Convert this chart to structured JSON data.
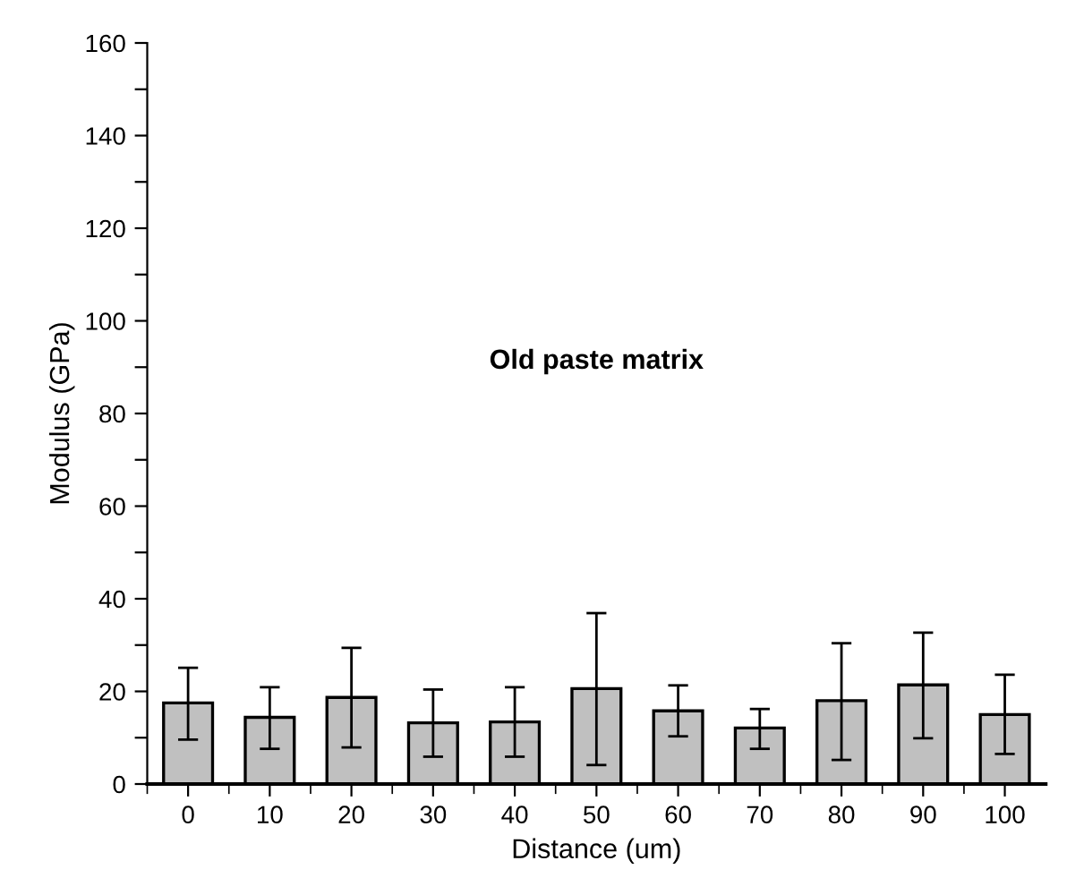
{
  "chart_data": {
    "type": "bar",
    "xlabel": "Distance (um)",
    "ylabel": "Modulus (GPa)",
    "annotations": [
      "Old paste matrix"
    ],
    "categories": [
      "0",
      "10",
      "20",
      "30",
      "40",
      "50",
      "60",
      "70",
      "80",
      "90",
      "100"
    ],
    "values": [
      17.5,
      14.4,
      18.7,
      13.2,
      13.4,
      20.6,
      15.8,
      12.1,
      18.0,
      21.4,
      15.0
    ],
    "errors": [
      [
        9.6,
        25.1
      ],
      [
        7.6,
        20.9
      ],
      [
        7.9,
        29.4
      ],
      [
        5.9,
        20.4
      ],
      [
        5.9,
        20.9
      ],
      [
        4.1,
        36.9
      ],
      [
        10.3,
        21.3
      ],
      [
        7.6,
        16.2
      ],
      [
        5.2,
        30.4
      ],
      [
        9.9,
        32.7
      ],
      [
        6.5,
        23.6
      ]
    ],
    "color": "#c0c0c0",
    "ylim": [
      0,
      160
    ],
    "yticks": [
      0,
      {
        "value": 10,
        "label": null
      },
      20,
      {
        "value": 30,
        "label": null
      },
      40,
      {
        "value": 50,
        "label": null
      },
      60,
      {
        "value": 70,
        "label": null
      },
      80,
      {
        "value": 90,
        "label": null
      },
      100,
      {
        "value": 110,
        "label": null
      },
      120,
      {
        "value": 130,
        "label": null
      },
      140,
      {
        "value": 150,
        "label": null
      },
      160
    ],
    "grid": false,
    "legend": false
  }
}
